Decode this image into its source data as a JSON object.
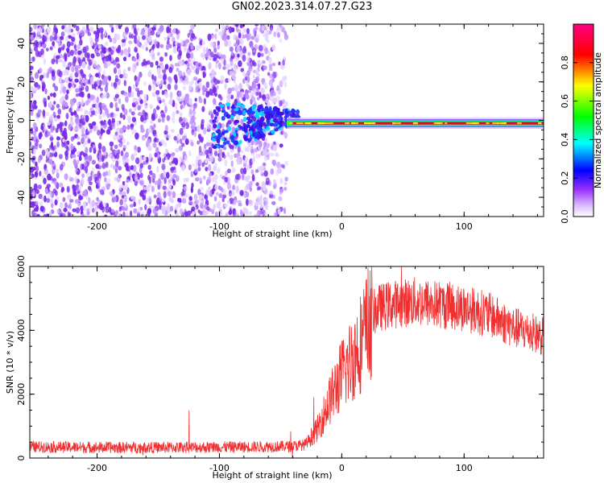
{
  "page_title": "GN02.2023.314.07.27.G23",
  "colors": {
    "snr_line": "#f03030",
    "spectrogram_noise": "#7a2be8",
    "spectrogram_signal_core": "#e8002a",
    "colormap": [
      "#ffffff",
      "#d8b8ff",
      "#9b30ff",
      "#0000ff",
      "#00ffff",
      "#00ff00",
      "#ffff00",
      "#ff0000",
      "#ff0080"
    ]
  },
  "chart_data": [
    {
      "type": "heatmap",
      "title": "",
      "xlabel": "Height of straight line (km)",
      "ylabel": "Frequency (Hz)",
      "xlim": [
        -255,
        165
      ],
      "ylim": [
        -50,
        50
      ],
      "x_ticks": [
        -200,
        -100,
        0,
        100
      ],
      "x_tick_labels": [
        "-200",
        "-100",
        "0",
        "100"
      ],
      "y_ticks": [
        -40,
        -20,
        0,
        20,
        40
      ],
      "y_tick_labels": [
        "-40",
        "-20",
        "0",
        "20",
        "40"
      ],
      "colorbar": {
        "label": "Normalized spectral amplitude",
        "range": [
          0,
          1
        ],
        "ticks": [
          0.0,
          0.2,
          0.4,
          0.6,
          0.8
        ],
        "tick_labels": [
          "0.0",
          "0.2",
          "0.4",
          "0.6",
          "0.8"
        ]
      },
      "features": {
        "noise_region_x": [
          -255,
          -45
        ],
        "signal_line_x": [
          -45,
          165
        ],
        "signal_frequency_hz": -1.5,
        "signal_core_amplitude": 0.9
      }
    },
    {
      "type": "line",
      "title": "",
      "xlabel": "Height of straight line (km)",
      "ylabel": "SNR (10 * v/v)",
      "xlim": [
        -255,
        165
      ],
      "ylim": [
        0,
        6000
      ],
      "x_ticks": [
        -200,
        -100,
        0,
        100
      ],
      "x_tick_labels": [
        "-200",
        "-100",
        "0",
        "100"
      ],
      "y_ticks": [
        0,
        2000,
        4000,
        6000
      ],
      "y_tick_labels": [
        "0",
        "2000",
        "4000",
        "6000"
      ],
      "series": [
        {
          "x": [
            -255,
            -200,
            -150,
            -100,
            -60,
            -40,
            -30,
            -20,
            -10,
            0,
            10,
            20,
            25,
            30,
            40,
            60,
            80,
            100,
            120,
            140,
            165
          ],
          "values": [
            350,
            330,
            330,
            340,
            360,
            370,
            420,
            900,
            1800,
            2600,
            3200,
            4000,
            4500,
            4700,
            4800,
            4900,
            4800,
            4700,
            4500,
            4100,
            3800
          ]
        }
      ]
    }
  ]
}
